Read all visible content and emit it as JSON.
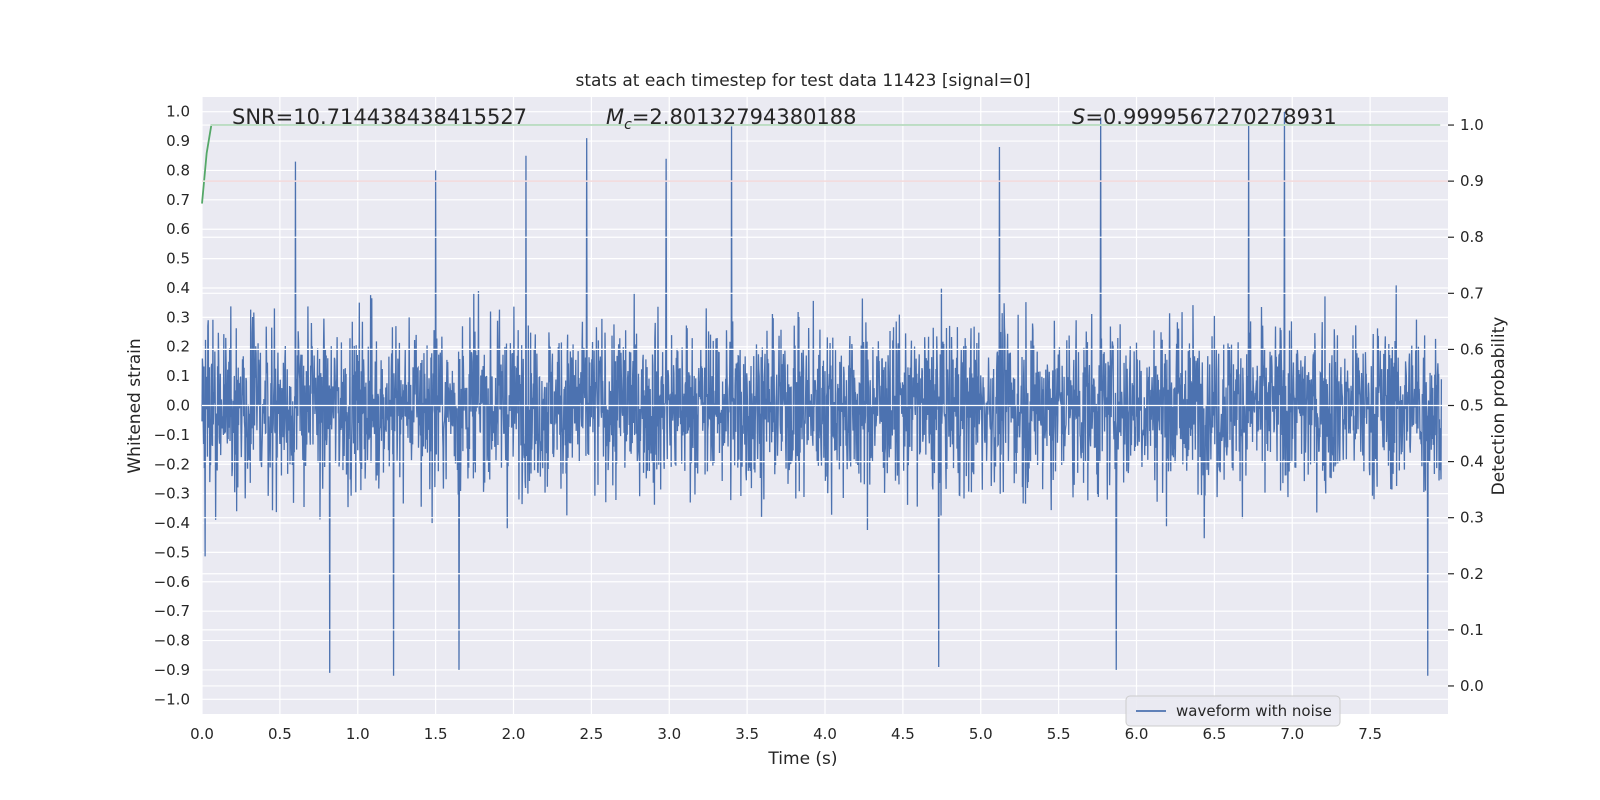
{
  "chart_data": {
    "type": "line",
    "title": "stats at each timestep for test data 11423 [signal=0]",
    "xlabel": "Time (s)",
    "ylabel": "Whitened strain",
    "y2label": "Detection probability",
    "xlim": [
      0.0,
      8.0
    ],
    "ylim": [
      -1.05,
      1.05
    ],
    "y2lim": [
      -0.05,
      1.05
    ],
    "x_ticks": [
      "0.0",
      "0.5",
      "1.0",
      "1.5",
      "2.0",
      "2.5",
      "3.0",
      "3.5",
      "4.0",
      "4.5",
      "5.0",
      "5.5",
      "6.0",
      "6.5",
      "7.0",
      "7.5"
    ],
    "y_ticks": [
      "1.0",
      "0.9",
      "0.8",
      "0.7",
      "0.6",
      "0.5",
      "0.4",
      "0.3",
      "0.2",
      "0.1",
      "0.0",
      "−0.1",
      "−0.2",
      "−0.3",
      "−0.4",
      "−0.5",
      "−0.6",
      "−0.7",
      "−0.8",
      "−0.9",
      "−1.0"
    ],
    "y2_ticks": [
      "1.0",
      "0.9",
      "0.8",
      "0.7",
      "0.6",
      "0.5",
      "0.4",
      "0.3",
      "0.2",
      "0.1",
      "0.0"
    ],
    "grid": true,
    "legend_position": "bottom-right",
    "annotations": {
      "snr": "SNR=10.714438438415527",
      "mc_symbol": "M",
      "mc_sub": "c",
      "mc_value": "=2.80132794380188",
      "s_symbol": "S",
      "s_value": "=0.9999567270278931"
    },
    "series": [
      {
        "name": "waveform with noise",
        "axis": "left",
        "color": "#4c72b0",
        "sample_rate_hz": 400,
        "amplitude_envelope": 0.92,
        "notable_peaks": [
          {
            "x": 0.6,
            "y": 0.83
          },
          {
            "x": 1.5,
            "y": 0.8
          },
          {
            "x": 2.08,
            "y": 0.85
          },
          {
            "x": 2.47,
            "y": 0.91
          },
          {
            "x": 2.98,
            "y": 0.84
          },
          {
            "x": 3.4,
            "y": 0.95
          },
          {
            "x": 5.12,
            "y": 0.88
          },
          {
            "x": 5.77,
            "y": 0.98
          },
          {
            "x": 6.72,
            "y": 0.96
          },
          {
            "x": 6.95,
            "y": 1.0
          },
          {
            "x": 0.82,
            "y": -0.91
          },
          {
            "x": 1.23,
            "y": -0.92
          },
          {
            "x": 1.65,
            "y": -0.9
          },
          {
            "x": 4.73,
            "y": -0.89
          },
          {
            "x": 5.87,
            "y": -0.9
          },
          {
            "x": 7.87,
            "y": -0.92
          }
        ]
      },
      {
        "name": "",
        "axis": "right",
        "color": "#55a868",
        "x": [
          0.0,
          0.03,
          0.06,
          0.1,
          0.5,
          1.0,
          2.0,
          3.0,
          4.0,
          5.0,
          6.0,
          7.0,
          7.95
        ],
        "values": [
          0.86,
          0.95,
          1.0,
          1.0,
          1.0,
          1.0,
          1.0,
          1.0,
          1.0,
          1.0,
          1.0,
          1.0,
          1.0
        ]
      }
    ],
    "threshold": {
      "axis": "right",
      "value": 0.9,
      "color": "#c44e52"
    }
  }
}
